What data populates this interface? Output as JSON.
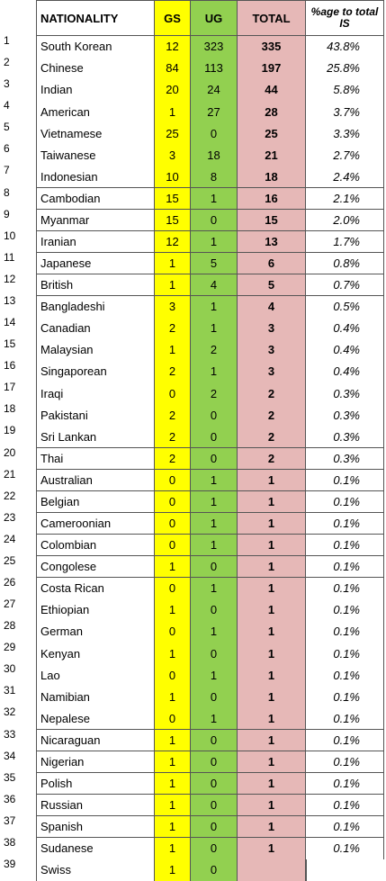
{
  "table": {
    "header": [
      "NATIONALITY",
      "GS",
      "UG",
      "TOTAL",
      "%age to total IS"
    ],
    "rows": [
      [
        1,
        "South Korean",
        12,
        323,
        335,
        "43.8%"
      ],
      [
        2,
        "Chinese",
        84,
        113,
        197,
        "25.8%"
      ],
      [
        3,
        "Indian",
        20,
        24,
        44,
        "5.8%"
      ],
      [
        4,
        "American",
        1,
        27,
        28,
        "3.7%"
      ],
      [
        5,
        "Vietnamese",
        25,
        0,
        25,
        "3.3%"
      ],
      [
        6,
        "Taiwanese",
        3,
        18,
        21,
        "2.7%"
      ],
      [
        7,
        "Indonesian",
        10,
        8,
        18,
        "2.4%"
      ],
      [
        8,
        "Cambodian",
        15,
        1,
        16,
        "2.1%"
      ],
      [
        9,
        "Myanmar",
        15,
        0,
        15,
        "2.0%"
      ],
      [
        10,
        "Iranian",
        12,
        1,
        13,
        "1.7%"
      ],
      [
        11,
        "Japanese",
        1,
        5,
        6,
        "0.8%"
      ],
      [
        12,
        "British",
        1,
        4,
        5,
        "0.7%"
      ],
      [
        13,
        "Bangladeshi",
        3,
        1,
        4,
        "0.5%"
      ],
      [
        14,
        "Canadian",
        2,
        1,
        3,
        "0.4%"
      ],
      [
        15,
        "Malaysian",
        1,
        2,
        3,
        "0.4%"
      ],
      [
        16,
        "Singaporean",
        2,
        1,
        3,
        "0.4%"
      ],
      [
        17,
        "Iraqi",
        0,
        2,
        2,
        "0.3%"
      ],
      [
        18,
        "Pakistani",
        2,
        0,
        2,
        "0.3%"
      ],
      [
        19,
        "Sri Lankan",
        2,
        0,
        2,
        "0.3%"
      ],
      [
        20,
        "Thai",
        2,
        0,
        2,
        "0.3%"
      ],
      [
        21,
        "Australian",
        0,
        1,
        1,
        "0.1%"
      ],
      [
        22,
        "Belgian",
        0,
        1,
        1,
        "0.1%"
      ],
      [
        23,
        "Cameroonian",
        0,
        1,
        1,
        "0.1%"
      ],
      [
        24,
        "Colombian",
        0,
        1,
        1,
        "0.1%"
      ],
      [
        25,
        "Congolese",
        1,
        0,
        1,
        "0.1%"
      ],
      [
        26,
        "Costa Rican",
        0,
        1,
        1,
        "0.1%"
      ],
      [
        27,
        "Ethiopian",
        1,
        0,
        1,
        "0.1%"
      ],
      [
        28,
        "German",
        0,
        1,
        1,
        "0.1%"
      ],
      [
        29,
        "Kenyan",
        1,
        0,
        1,
        "0.1%"
      ],
      [
        30,
        "Lao",
        0,
        1,
        1,
        "0.1%"
      ],
      [
        31,
        "Namibian",
        1,
        0,
        1,
        "0.1%"
      ],
      [
        32,
        "Nepalese",
        0,
        1,
        1,
        "0.1%"
      ],
      [
        33,
        "Nicaraguan",
        1,
        0,
        1,
        "0.1%"
      ],
      [
        34,
        "Nigerian",
        1,
        0,
        1,
        "0.1%"
      ],
      [
        35,
        "Polish",
        1,
        0,
        1,
        "0.1%"
      ],
      [
        36,
        "Russian",
        1,
        0,
        1,
        "0.1%"
      ],
      [
        37,
        "Spanish",
        1,
        0,
        1,
        "0.1%"
      ],
      [
        38,
        "Sudanese",
        1,
        0,
        1,
        "0.1%"
      ],
      [
        39,
        "Swiss",
        1,
        0
      ]
    ]
  }
}
